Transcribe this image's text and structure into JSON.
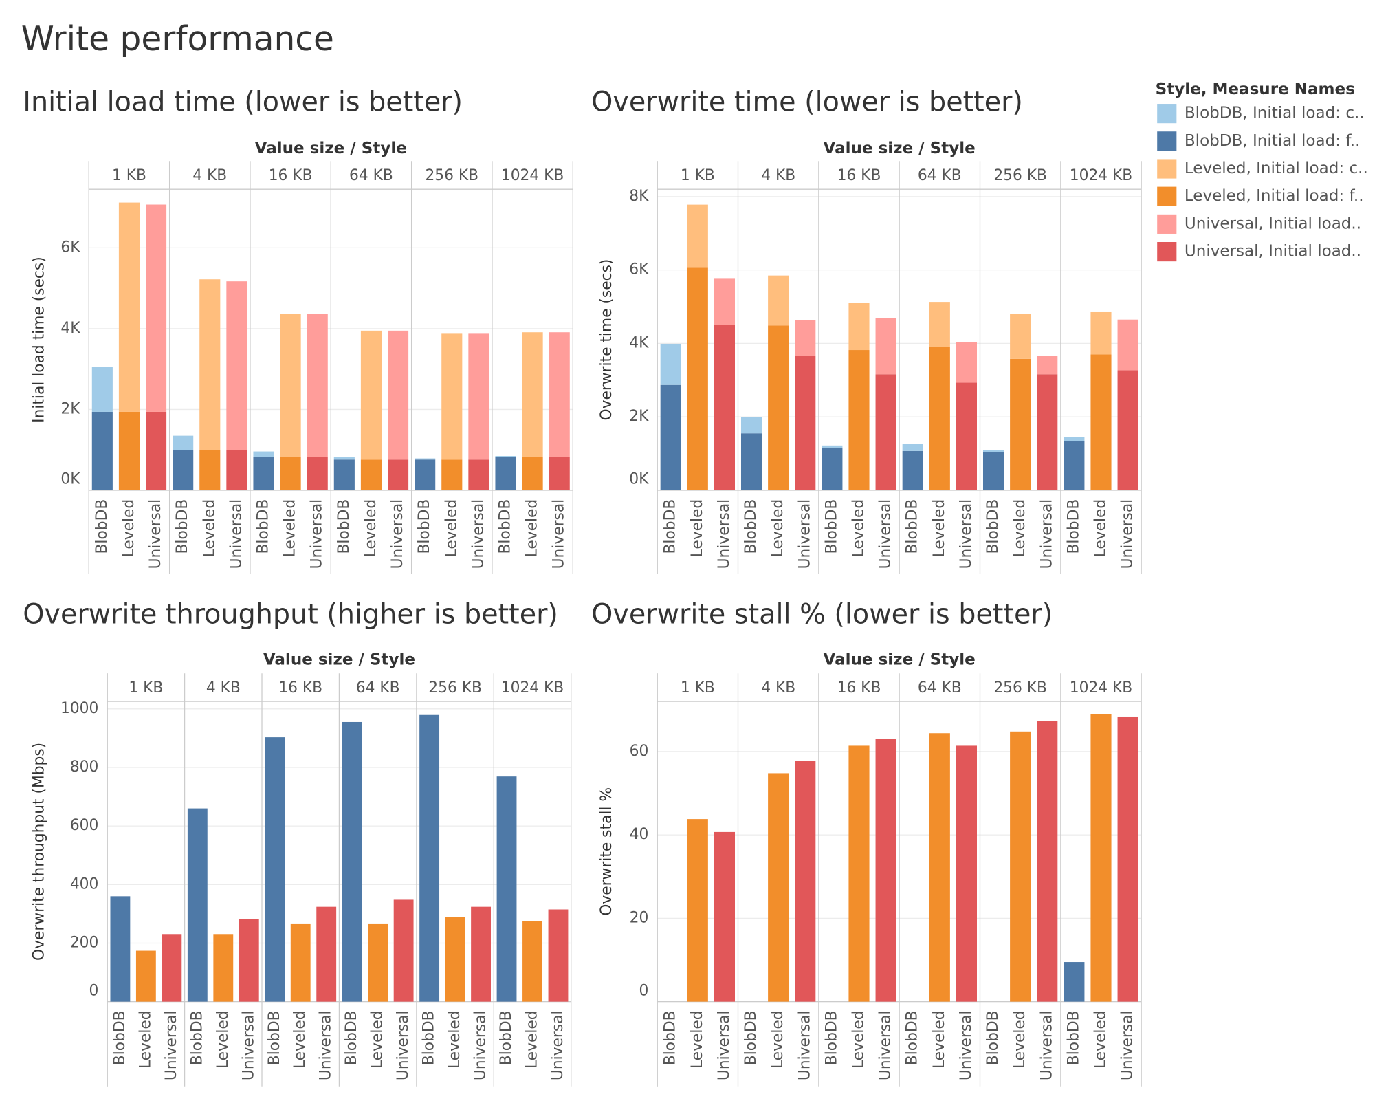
{
  "title": "Write performance",
  "legend": {
    "title": "Style, Measure Names",
    "items": [
      {
        "label": "BlobDB, Initial load: c..",
        "color": "#a0cbe8"
      },
      {
        "label": "BlobDB, Initial load: f..",
        "color": "#4e79a7"
      },
      {
        "label": "Leveled, Initial load: c..",
        "color": "#ffbe7d"
      },
      {
        "label": "Leveled, Initial load: f..",
        "color": "#f28e2b"
      },
      {
        "label": "Universal, Initial load..",
        "color": "#ff9d9a"
      },
      {
        "label": "Universal, Initial load..",
        "color": "#e15759"
      }
    ]
  },
  "chart_data": [
    {
      "type": "stacked_bar",
      "title": "Initial load time (lower is better)",
      "x_label": "Value size  /  Style",
      "y_label": "Initial load time (secs)",
      "categories": [
        "1 KB",
        "4 KB",
        "16 KB",
        "64 KB",
        "256 KB",
        "1024 KB"
      ],
      "groups": [
        "BlobDB",
        "Leveled",
        "Universal"
      ],
      "series": [
        {
          "colors": [
            "#4e79a7",
            "#f28e2b",
            "#e15759"
          ],
          "values": [
            [
              1940,
              1940,
              1940
            ],
            [
              1000,
              1000,
              1000
            ],
            [
              830,
              830,
              830
            ],
            [
              760,
              760,
              760
            ],
            [
              760,
              760,
              760
            ],
            [
              830,
              830,
              830
            ]
          ]
        },
        {
          "colors": [
            "#a0cbe8",
            "#ffbe7d",
            "#ff9d9a"
          ],
          "values": [
            [
              1120,
              5180,
              5130
            ],
            [
              350,
              4220,
              4170
            ],
            [
              130,
              3540,
              3540
            ],
            [
              70,
              3190,
              3190
            ],
            [
              30,
              3130,
              3130
            ],
            [
              20,
              3080,
              3080
            ]
          ]
        }
      ],
      "ylim": [
        0,
        7450
      ],
      "yticks": [
        {
          "value": 0,
          "label": "0K"
        },
        {
          "value": 2000,
          "label": "2K"
        },
        {
          "value": 4000,
          "label": "4K"
        },
        {
          "value": 6000,
          "label": "6K"
        }
      ],
      "grid": true
    },
    {
      "type": "stacked_bar",
      "title": "Overwrite time (lower is better)",
      "x_label": "Value size  /  Style",
      "y_label": "Overwrite time (secs)",
      "categories": [
        "1 KB",
        "4 KB",
        "16 KB",
        "64 KB",
        "256 KB",
        "1024 KB"
      ],
      "groups": [
        "BlobDB",
        "Leveled",
        "Universal"
      ],
      "series": [
        {
          "colors": [
            "#4e79a7",
            "#f28e2b",
            "#e15759"
          ],
          "values": [
            [
              2870,
              6060,
              4510
            ],
            [
              1550,
              4490,
              3660
            ],
            [
              1150,
              3820,
              3160
            ],
            [
              1070,
              3910,
              2930
            ],
            [
              1030,
              3580,
              3160
            ],
            [
              1340,
              3700,
              3270
            ]
          ]
        },
        {
          "colors": [
            "#a0cbe8",
            "#ffbe7d",
            "#ff9d9a"
          ],
          "values": [
            [
              1120,
              1720,
              1270
            ],
            [
              450,
              1360,
              970
            ],
            [
              70,
              1290,
              1540
            ],
            [
              190,
              1220,
              1100
            ],
            [
              70,
              1220,
              500
            ],
            [
              120,
              1170,
              1380
            ]
          ]
        }
      ],
      "ylim": [
        0,
        8200
      ],
      "yticks": [
        {
          "value": 0,
          "label": "0K"
        },
        {
          "value": 2000,
          "label": "2K"
        },
        {
          "value": 4000,
          "label": "4K"
        },
        {
          "value": 6000,
          "label": "6K"
        },
        {
          "value": 8000,
          "label": "8K"
        }
      ],
      "grid": true
    },
    {
      "type": "bar",
      "title": "Overwrite throughput (higher is better)",
      "x_label": "Value size  /  Style",
      "y_label": "Overwrite throughput (Mbps)",
      "categories": [
        "1 KB",
        "4 KB",
        "16 KB",
        "64 KB",
        "256 KB",
        "1024 KB"
      ],
      "groups": [
        "BlobDB",
        "Leveled",
        "Universal"
      ],
      "series": [
        {
          "colors": [
            "#4e79a7",
            "#f28e2b",
            "#e15759"
          ],
          "values": [
            [
              360,
              174,
              231
            ],
            [
              660,
              231,
              282
            ],
            [
              903,
              267,
              324
            ],
            [
              955,
              267,
              348
            ],
            [
              979,
              288,
              324
            ],
            [
              769,
              276,
              315
            ]
          ]
        }
      ],
      "ylim": [
        0,
        1025
      ],
      "yticks": [
        0,
        200,
        400,
        600,
        800,
        1000
      ],
      "grid": true
    },
    {
      "type": "bar",
      "title": "Overwrite stall % (lower is better)",
      "x_label": "Value size  /  Style",
      "y_label": "Overwrite stall %",
      "categories": [
        "1 KB",
        "4 KB",
        "16 KB",
        "64 KB",
        "256 KB",
        "1024 KB"
      ],
      "groups": [
        "BlobDB",
        "Leveled",
        "Universal"
      ],
      "series": [
        {
          "colors": [
            "#4e79a7",
            "#f28e2b",
            "#e15759"
          ],
          "values": [
            [
              0,
              43.8,
              40.7
            ],
            [
              0,
              54.8,
              57.8
            ],
            [
              0,
              61.4,
              63.1
            ],
            [
              0,
              64.4,
              61.4
            ],
            [
              0,
              64.8,
              67.4
            ],
            [
              9.5,
              69.0,
              68.4
            ]
          ]
        }
      ],
      "ylim": [
        0,
        72
      ],
      "yticks": [
        0,
        20,
        40,
        60
      ],
      "grid": true
    }
  ]
}
